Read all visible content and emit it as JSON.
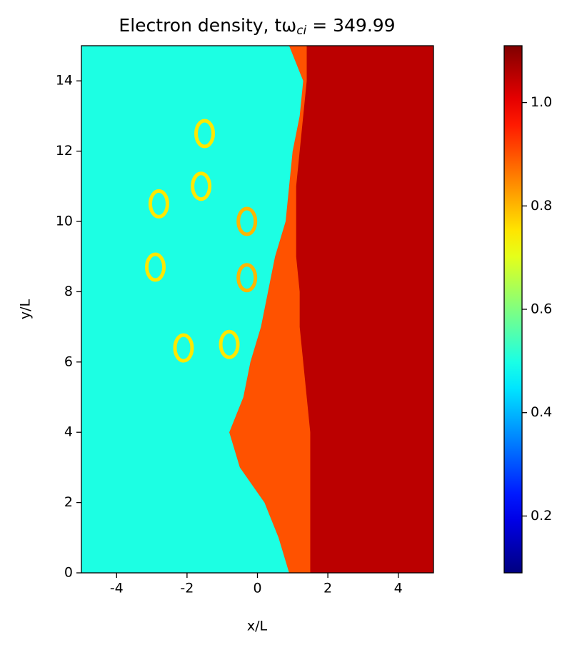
{
  "chart_data": {
    "type": "heatmap",
    "title": "Electron density, tω",
    "title_subscript": "ci",
    "title_suffix": " = 349.99",
    "xlabel": "x/L",
    "ylabel": "y/L",
    "xlim": [
      -5,
      5
    ],
    "xticks": [
      -4,
      -2,
      0,
      2,
      4
    ],
    "ylim": [
      0,
      15
    ],
    "yticks": [
      0,
      2,
      4,
      6,
      8,
      10,
      12,
      14
    ],
    "colormap": "jet",
    "clim": [
      0.09,
      1.11
    ],
    "cticks": [
      0.2,
      0.4,
      0.6,
      0.8,
      {
        "value": 1.0,
        "label": "1.0"
      }
    ],
    "field": {
      "y": [
        0,
        1,
        2,
        3,
        4,
        5,
        6,
        7,
        8,
        9,
        10,
        11,
        12,
        13,
        14,
        15
      ],
      "background": 0.5,
      "layers": [
        {
          "value": 0.9,
          "left_x": [
            0.9,
            0.6,
            0.2,
            -0.5,
            -0.8,
            -0.4,
            -0.2,
            0.1,
            0.3,
            0.5,
            0.8,
            0.9,
            1.0,
            1.2,
            1.3,
            0.9
          ]
        },
        {
          "value": 1.05,
          "left_x": [
            1.5,
            1.5,
            1.5,
            1.5,
            1.5,
            1.4,
            1.3,
            1.2,
            1.2,
            1.1,
            1.1,
            1.1,
            1.2,
            1.3,
            1.4,
            1.4
          ]
        }
      ],
      "blobs": [
        {
          "x": -2.8,
          "y": 10.5,
          "value": 0.75
        },
        {
          "x": -2.1,
          "y": 6.4,
          "value": 0.75
        },
        {
          "x": -1.5,
          "y": 12.5,
          "value": 0.75
        },
        {
          "x": -0.3,
          "y": 10.0,
          "value": 0.8
        },
        {
          "x": -0.3,
          "y": 8.4,
          "value": 0.8
        },
        {
          "x": -2.9,
          "y": 8.7,
          "value": 0.75
        },
        {
          "x": -0.8,
          "y": 6.5,
          "value": 0.75
        },
        {
          "x": -1.6,
          "y": 11.0,
          "value": 0.75
        }
      ]
    }
  }
}
